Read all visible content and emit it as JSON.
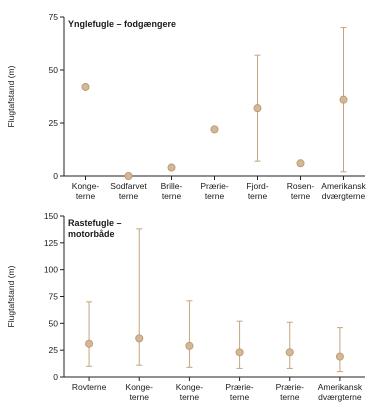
{
  "colors": {
    "marker_fill": "#d2b896",
    "marker_stroke": "#b8946c",
    "error_bar": "#c4a47e",
    "axis": "#222222"
  },
  "chart_data": [
    {
      "type": "scatter",
      "title_lines": [
        "Ynglefugle – fodgængere"
      ],
      "ylabel": "Flugtafstand (m)",
      "ylim": [
        0,
        75
      ],
      "yticks": [
        0,
        25,
        50,
        75
      ],
      "categories": [
        [
          "Konge-",
          "terne"
        ],
        [
          "Sodfarvet",
          "terne"
        ],
        [
          "Brille-",
          "terne"
        ],
        [
          "Prærie-",
          "terne"
        ],
        [
          "Fjord-",
          "terne"
        ],
        [
          "Rosen-",
          "terne"
        ],
        [
          "Amerikansk",
          "dværgterne"
        ]
      ],
      "series": [
        {
          "values": [
            42,
            0,
            4,
            22,
            32,
            6,
            36
          ],
          "err_low": [
            null,
            null,
            null,
            null,
            7,
            null,
            2
          ],
          "err_high": [
            null,
            null,
            null,
            null,
            57,
            null,
            70
          ]
        }
      ]
    },
    {
      "type": "scatter",
      "title_lines": [
        "Rastefugle –",
        "motorbåde"
      ],
      "ylabel": "Flugtafstand (m)",
      "ylim": [
        0,
        150
      ],
      "yticks": [
        0,
        25,
        50,
        75,
        100,
        125,
        150
      ],
      "categories": [
        [
          "Rovterne"
        ],
        [
          "Konge-",
          "terne"
        ],
        [
          "Konge-",
          "terne"
        ],
        [
          "Prærie-",
          "terne"
        ],
        [
          "Prærie-",
          "terne"
        ],
        [
          "Amerikansk",
          "dværgterne"
        ]
      ],
      "series": [
        {
          "values": [
            31,
            36,
            29,
            23,
            23,
            19
          ],
          "err_low": [
            10,
            11,
            9,
            8,
            8,
            5
          ],
          "err_high": [
            70,
            138,
            71,
            52,
            51,
            46
          ]
        }
      ]
    }
  ]
}
